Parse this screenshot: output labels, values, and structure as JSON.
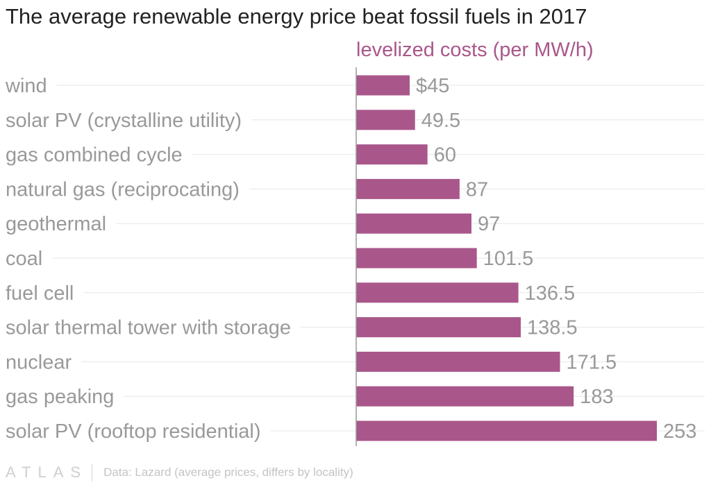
{
  "title": "The average renewable energy price beat fossil fuels in 2017",
  "footer": {
    "logo": "ATLAS",
    "source": "Data: Lazard (average prices, differs by locality)"
  },
  "colors": {
    "bar": "#a9578a",
    "gridline": "#e6e6e6",
    "axis": "#999999",
    "label": "#999999"
  },
  "chart_data": {
    "type": "bar",
    "orientation": "horizontal",
    "series": [
      {
        "name": "levelized costs (per MW/h)",
        "values": [
          45,
          49.5,
          60,
          87,
          97,
          101.5,
          136.5,
          138.5,
          171.5,
          183,
          253
        ],
        "value_labels": [
          "$45",
          "49.5",
          "60",
          "87",
          "97",
          "101.5",
          "136.5",
          "138.5",
          "171.5",
          "183",
          "253"
        ]
      }
    ],
    "categories": [
      "wind",
      "solar PV (crystalline utility)",
      "gas combined cycle",
      "natural gas (reciprocating)",
      "geothermal",
      "coal",
      "fuel cell",
      "solar thermal tower with storage",
      "nuclear",
      "gas peaking",
      "solar PV (rooftop residential)"
    ],
    "xlim": [
      0,
      253
    ],
    "grid": true,
    "legend": "top"
  }
}
